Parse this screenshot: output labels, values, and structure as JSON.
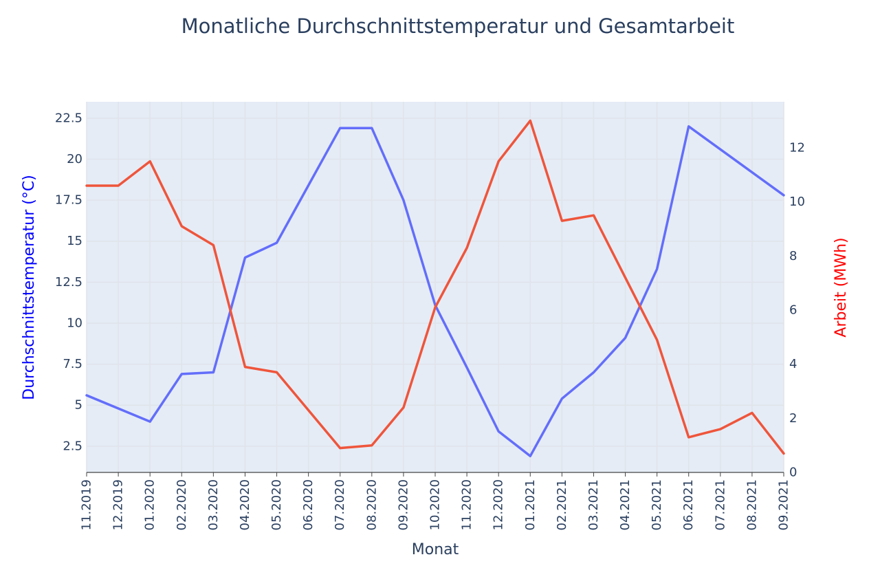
{
  "chart_data": {
    "type": "line",
    "title": "Monatliche Durchschnittstemperatur und Gesamtarbeit",
    "xlabel": "Monat",
    "y_left_label": "Durchschnittstemperatur (°C)",
    "y_right_label": "Arbeit (MWh)",
    "categories": [
      "11.2019",
      "12.2019",
      "01.2020",
      "02.2020",
      "03.2020",
      "04.2020",
      "05.2020",
      "06.2020",
      "07.2020",
      "08.2020",
      "09.2020",
      "10.2020",
      "11.2020",
      "12.2020",
      "01.2021",
      "02.2021",
      "03.2021",
      "04.2021",
      "05.2021",
      "06.2021",
      "07.2021",
      "08.2021",
      "09.2021"
    ],
    "y_left_ticks": [
      "2.5",
      "5",
      "7.5",
      "10",
      "12.5",
      "15",
      "17.5",
      "20",
      "22.5"
    ],
    "y_right_ticks": [
      "0",
      "2",
      "4",
      "6",
      "8",
      "10",
      "12"
    ],
    "y_left_range": [
      0.9,
      23.5
    ],
    "y_right_range": [
      0,
      13.7
    ],
    "series": [
      {
        "axis": "left",
        "color": "#636efa",
        "values": [
          5.6,
          4.8,
          4.0,
          6.9,
          7.0,
          14.0,
          14.9,
          18.4,
          21.9,
          21.9,
          17.5,
          11.1,
          7.3,
          3.4,
          1.9,
          5.4,
          7.0,
          9.1,
          13.3,
          22.0,
          20.6,
          19.2,
          17.8
        ]
      },
      {
        "axis": "right",
        "color": "#ef553b",
        "values": [
          10.6,
          10.6,
          11.5,
          9.1,
          8.4,
          3.9,
          3.7,
          2.3,
          0.9,
          1.0,
          2.4,
          6.1,
          8.3,
          11.5,
          13.0,
          9.3,
          9.5,
          7.2,
          4.9,
          1.3,
          1.6,
          2.2,
          0.7
        ]
      }
    ],
    "grid": true,
    "legend": "none"
  }
}
